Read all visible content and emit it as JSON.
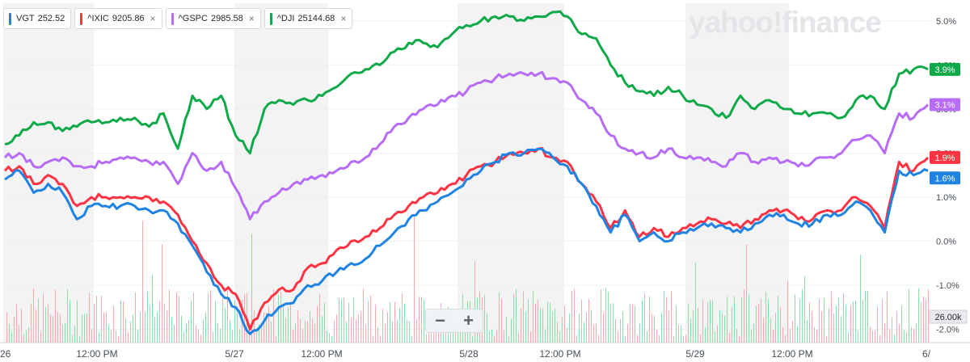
{
  "legend": [
    {
      "symbol": "VGT",
      "price": "252.52",
      "color": "#1e83e2",
      "closable": false
    },
    {
      "symbol": "^IXIC",
      "price": "9205.86",
      "color": "#ff3342",
      "closable": true
    },
    {
      "symbol": "^GSPC",
      "price": "2985.58",
      "color": "#b76cf5",
      "closable": true
    },
    {
      "symbol": "^DJI",
      "price": "25144.68",
      "color": "#10a94a",
      "closable": true
    }
  ],
  "close_glyph": "×",
  "logo": "yahoo!finance",
  "zoom": {
    "minus": "−",
    "plus": "+"
  },
  "chart_data": {
    "type": "line",
    "y_unit": "%",
    "ylim": [
      -2.3,
      5.4
    ],
    "y_ticks": [
      "5.0%",
      "4.0%",
      "3.0%",
      "2.0%",
      "1.0%",
      "0.0%",
      "-1.0%",
      "-2.0%"
    ],
    "y_tick_values": [
      5,
      4,
      3,
      2,
      1,
      0,
      -1,
      -2
    ],
    "x_ticks": [
      "26",
      "12:00 PM",
      "5/27",
      "12:00 PM",
      "5/28",
      "12:00 PM",
      "5/29",
      "12:00 PM",
      "6/"
    ],
    "grid": "vertical bands for regular trading hours",
    "volume_label": "26.00k",
    "series": [
      {
        "name": "^DJI",
        "color": "#10a94a",
        "last_label": "3.9%",
        "values": [
          2.2,
          2.4,
          2.7,
          2.7,
          2.5,
          2.6,
          2.7,
          2.7,
          2.8,
          2.8,
          2.6,
          2.9,
          2.1,
          3.3,
          3.0,
          3.3,
          2.4,
          2.0,
          3.0,
          3.2,
          3.1,
          3.2,
          3.3,
          3.5,
          3.8,
          3.9,
          4.0,
          4.3,
          4.5,
          4.5,
          4.4,
          4.7,
          4.9,
          5.0,
          5.1,
          5.1,
          5.0,
          5.1,
          5.2,
          5.1,
          4.7,
          4.6,
          4.0,
          3.6,
          3.4,
          3.3,
          3.5,
          3.3,
          3.1,
          3.0,
          2.8,
          3.3,
          3.0,
          3.2,
          3.0,
          2.9,
          2.9,
          2.9,
          2.8,
          3.2,
          3.3,
          3.0,
          3.8,
          3.9,
          3.9
        ],
        "hours_per_step": 1.5
      },
      {
        "name": "^GSPC",
        "color": "#b76cf5",
        "last_label": "3.1%",
        "values": [
          1.9,
          2.0,
          1.7,
          1.8,
          1.9,
          1.7,
          1.7,
          1.8,
          1.9,
          1.9,
          1.8,
          1.8,
          1.3,
          2.0,
          1.6,
          1.8,
          1.2,
          0.5,
          0.9,
          1.1,
          1.3,
          1.4,
          1.5,
          1.6,
          1.8,
          1.9,
          2.2,
          2.6,
          2.8,
          3.0,
          3.1,
          3.3,
          3.4,
          3.6,
          3.7,
          3.8,
          3.8,
          3.8,
          3.7,
          3.6,
          3.2,
          2.9,
          2.4,
          2.1,
          2.0,
          1.9,
          2.1,
          1.9,
          1.9,
          1.8,
          1.7,
          2.0,
          1.8,
          1.9,
          1.8,
          1.7,
          1.8,
          1.9,
          2.0,
          2.3,
          2.4,
          2.0,
          2.9,
          2.8,
          3.1
        ],
        "hours_per_step": 1.5
      },
      {
        "name": "^IXIC",
        "color": "#ff3342",
        "last_label": "1.9%",
        "values": [
          1.6,
          1.7,
          1.3,
          1.5,
          1.3,
          0.8,
          1.0,
          1.0,
          1.0,
          1.0,
          1.0,
          0.9,
          0.6,
          0.0,
          -0.5,
          -1.0,
          -1.2,
          -2.0,
          -1.4,
          -1.1,
          -1.1,
          -0.6,
          -0.5,
          -0.2,
          0.0,
          0.1,
          0.3,
          0.6,
          0.8,
          1.0,
          1.1,
          1.3,
          1.5,
          1.7,
          1.8,
          2.0,
          2.0,
          2.1,
          1.9,
          1.8,
          1.3,
          0.9,
          0.3,
          0.7,
          0.1,
          0.3,
          0.1,
          0.3,
          0.4,
          0.5,
          0.4,
          0.3,
          0.5,
          0.7,
          0.7,
          0.5,
          0.5,
          0.7,
          0.7,
          1.0,
          0.8,
          0.3,
          1.8,
          1.6,
          1.9
        ],
        "hours_per_step": 1.5
      },
      {
        "name": "VGT",
        "color": "#1e83e2",
        "last_label": "1.6%",
        "values": [
          1.4,
          1.6,
          1.1,
          1.3,
          1.1,
          0.5,
          0.8,
          0.8,
          0.8,
          0.8,
          0.7,
          0.7,
          0.4,
          -0.1,
          -0.7,
          -1.2,
          -1.5,
          -2.1,
          -1.8,
          -1.5,
          -1.4,
          -1.0,
          -0.9,
          -0.7,
          -0.5,
          -0.4,
          -0.1,
          0.2,
          0.5,
          0.7,
          0.9,
          1.1,
          1.4,
          1.6,
          1.8,
          2.0,
          2.0,
          2.1,
          1.9,
          1.7,
          1.3,
          0.8,
          0.2,
          0.6,
          0.0,
          0.2,
          0.0,
          0.2,
          0.3,
          0.4,
          0.3,
          0.2,
          0.4,
          0.6,
          0.6,
          0.4,
          0.4,
          0.6,
          0.6,
          0.9,
          0.7,
          0.2,
          1.6,
          1.5,
          1.6
        ],
        "hours_per_step": 1.5
      }
    ]
  }
}
